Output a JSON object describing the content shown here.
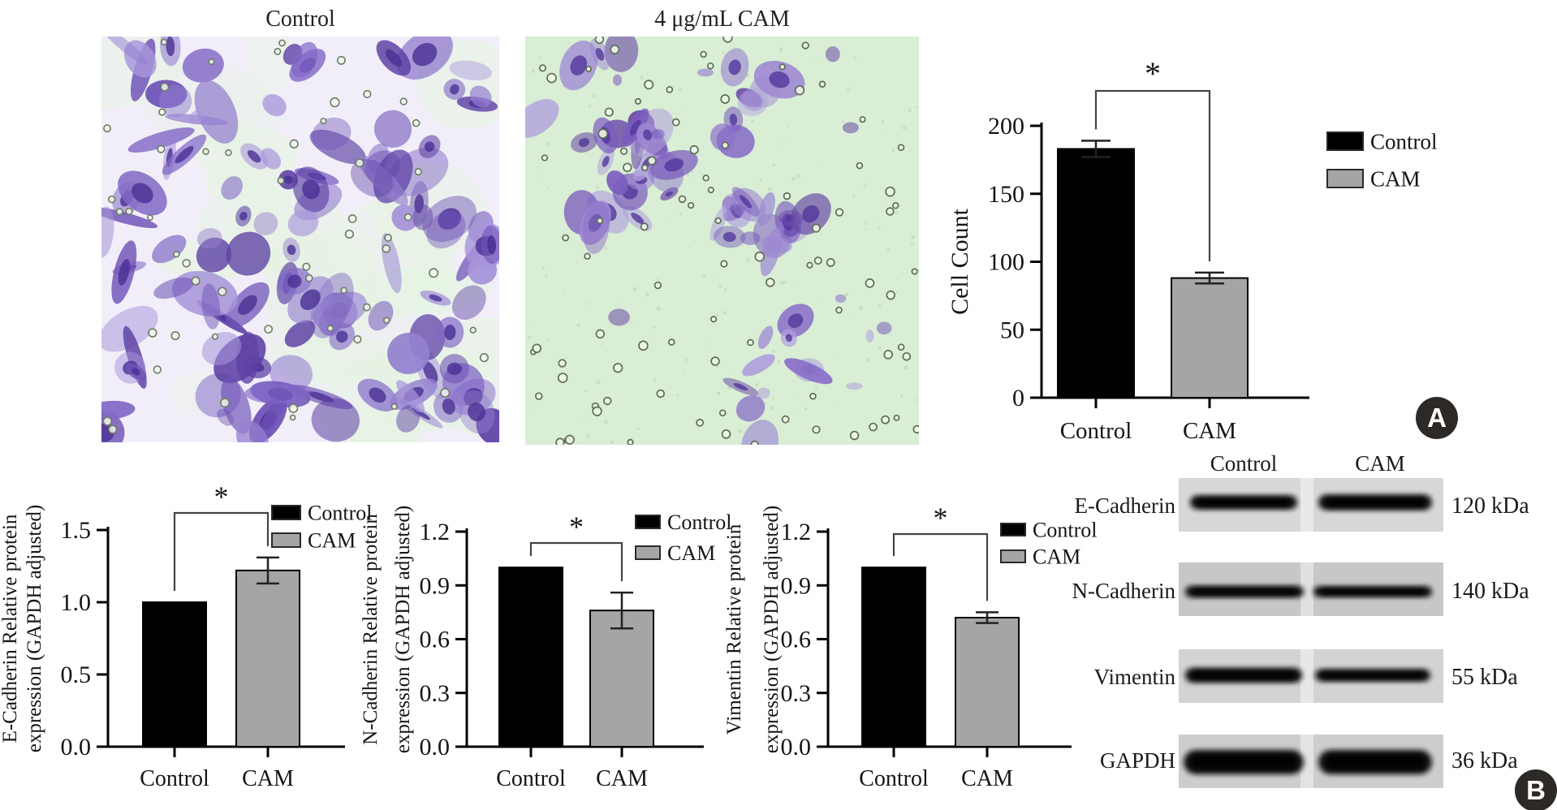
{
  "panel_a": {
    "label": "A",
    "image_titles": [
      "Control",
      "4 μg/mL CAM"
    ]
  },
  "panel_b": {
    "label": "B",
    "western_blot": {
      "column_headers": [
        "Control",
        "CAM"
      ],
      "rows": [
        {
          "protein": "E-Cadherin",
          "weight": "120 kDa"
        },
        {
          "protein": "N-Cadherin",
          "weight": "140 kDa"
        },
        {
          "protein": "Vimentin",
          "weight": "55 kDa"
        },
        {
          "protein": "GAPDH",
          "weight": "36 kDa"
        }
      ]
    }
  },
  "colors": {
    "bar_control": "#000000",
    "bar_cam": "#a5a5a5",
    "axis": "#000000",
    "badge_bg": "#2d2926"
  },
  "chart_data": [
    {
      "type": "bar",
      "title": "Transwell migration cell count",
      "categories": [
        "Control",
        "CAM"
      ],
      "values": [
        183,
        88
      ],
      "errors": [
        6,
        4
      ],
      "ylabel": "Cell Count",
      "ylabel_lines": [
        "Cell Count"
      ],
      "ylim": [
        0,
        200
      ],
      "yticks": [
        "0",
        "50",
        "100",
        "150",
        "200"
      ],
      "legend": [
        "Control",
        "CAM"
      ],
      "legend_position": "right-outside",
      "significance": "*",
      "bar_colors": [
        "#000000",
        "#a5a5a5"
      ],
      "grid": false
    },
    {
      "type": "bar",
      "title": "E-Cadherin protein expression",
      "categories": [
        "Control",
        "CAM"
      ],
      "values": [
        1.0,
        1.22
      ],
      "errors": [
        0,
        0.09
      ],
      "ylabel": "E-Cadherin Relative protein expression (GAPDH adjusted)",
      "ylabel_lines": [
        "E-Cadherin Relative protein",
        "expression (GAPDH adjusted)"
      ],
      "ylim": [
        0,
        1.5
      ],
      "yticks": [
        "0.0",
        "0.5",
        "1.0",
        "1.5"
      ],
      "legend": [
        "Control",
        "CAM"
      ],
      "legend_position": "top-right-inside",
      "significance": "*",
      "bar_colors": [
        "#000000",
        "#a5a5a5"
      ],
      "grid": false
    },
    {
      "type": "bar",
      "title": "N-Cadherin protein expression",
      "categories": [
        "Control",
        "CAM"
      ],
      "values": [
        1.0,
        0.76
      ],
      "errors": [
        0,
        0.1
      ],
      "ylabel": "N-Cadherin Relative protein expression (GAPDH adjusted)",
      "ylabel_lines": [
        "N-Cadherin Relative protein",
        "expression (GAPDH adjusted)"
      ],
      "ylim": [
        0,
        1.2
      ],
      "yticks": [
        "0.0",
        "0.3",
        "0.6",
        "0.9",
        "1.2"
      ],
      "legend": [
        "Control",
        "CAM"
      ],
      "legend_position": "top-right-inside",
      "significance": "*",
      "bar_colors": [
        "#000000",
        "#a5a5a5"
      ],
      "grid": false
    },
    {
      "type": "bar",
      "title": "Vimentin protein expression",
      "categories": [
        "Control",
        "CAM"
      ],
      "values": [
        1.0,
        0.72
      ],
      "errors": [
        0,
        0.03
      ],
      "ylabel": "Vimentin Relative protein expression (GAPDH adjusted)",
      "ylabel_lines": [
        "Vimentin Relative protein",
        "expression (GAPDH adjusted)"
      ],
      "ylim": [
        0,
        1.2
      ],
      "yticks": [
        "0.0",
        "0.3",
        "0.6",
        "0.9",
        "1.2"
      ],
      "legend": [
        "Control",
        "CAM"
      ],
      "legend_position": "top-right-inside",
      "significance": "*",
      "bar_colors": [
        "#000000",
        "#a5a5a5"
      ],
      "grid": false
    }
  ]
}
